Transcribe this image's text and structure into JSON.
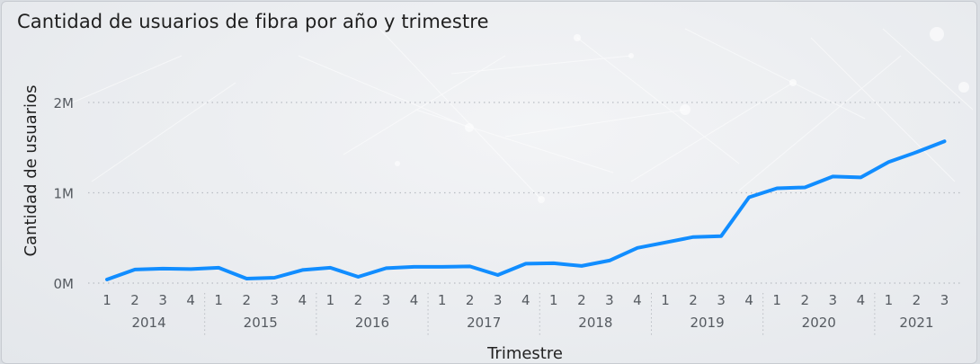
{
  "chart_data": {
    "type": "line",
    "title": "Cantidad de usuarios de fibra por año y trimestre",
    "xlabel": "Trimestre",
    "ylabel": "Cantidad de usuarios",
    "yticks": [
      "0M",
      "1M",
      "2M"
    ],
    "ylim": [
      0,
      2000000
    ],
    "years": [
      "2014",
      "2015",
      "2016",
      "2017",
      "2018",
      "2019",
      "2020",
      "2021"
    ],
    "x": [
      "1",
      "2",
      "3",
      "4",
      "1",
      "2",
      "3",
      "4",
      "1",
      "2",
      "3",
      "4",
      "1",
      "2",
      "3",
      "4",
      "1",
      "2",
      "3",
      "4",
      "1",
      "2",
      "3",
      "4",
      "1",
      "2",
      "3",
      "4",
      "1",
      "2",
      "3"
    ],
    "series": [
      {
        "name": "",
        "color": "#118dff",
        "values": [
          40000,
          150000,
          160000,
          155000,
          170000,
          50000,
          60000,
          145000,
          170000,
          70000,
          165000,
          180000,
          180000,
          185000,
          90000,
          215000,
          220000,
          190000,
          250000,
          390000,
          450000,
          510000,
          520000,
          950000,
          1050000,
          1060000,
          1180000,
          1170000,
          1340000,
          1450000,
          1570000
        ]
      }
    ],
    "grid": true
  }
}
